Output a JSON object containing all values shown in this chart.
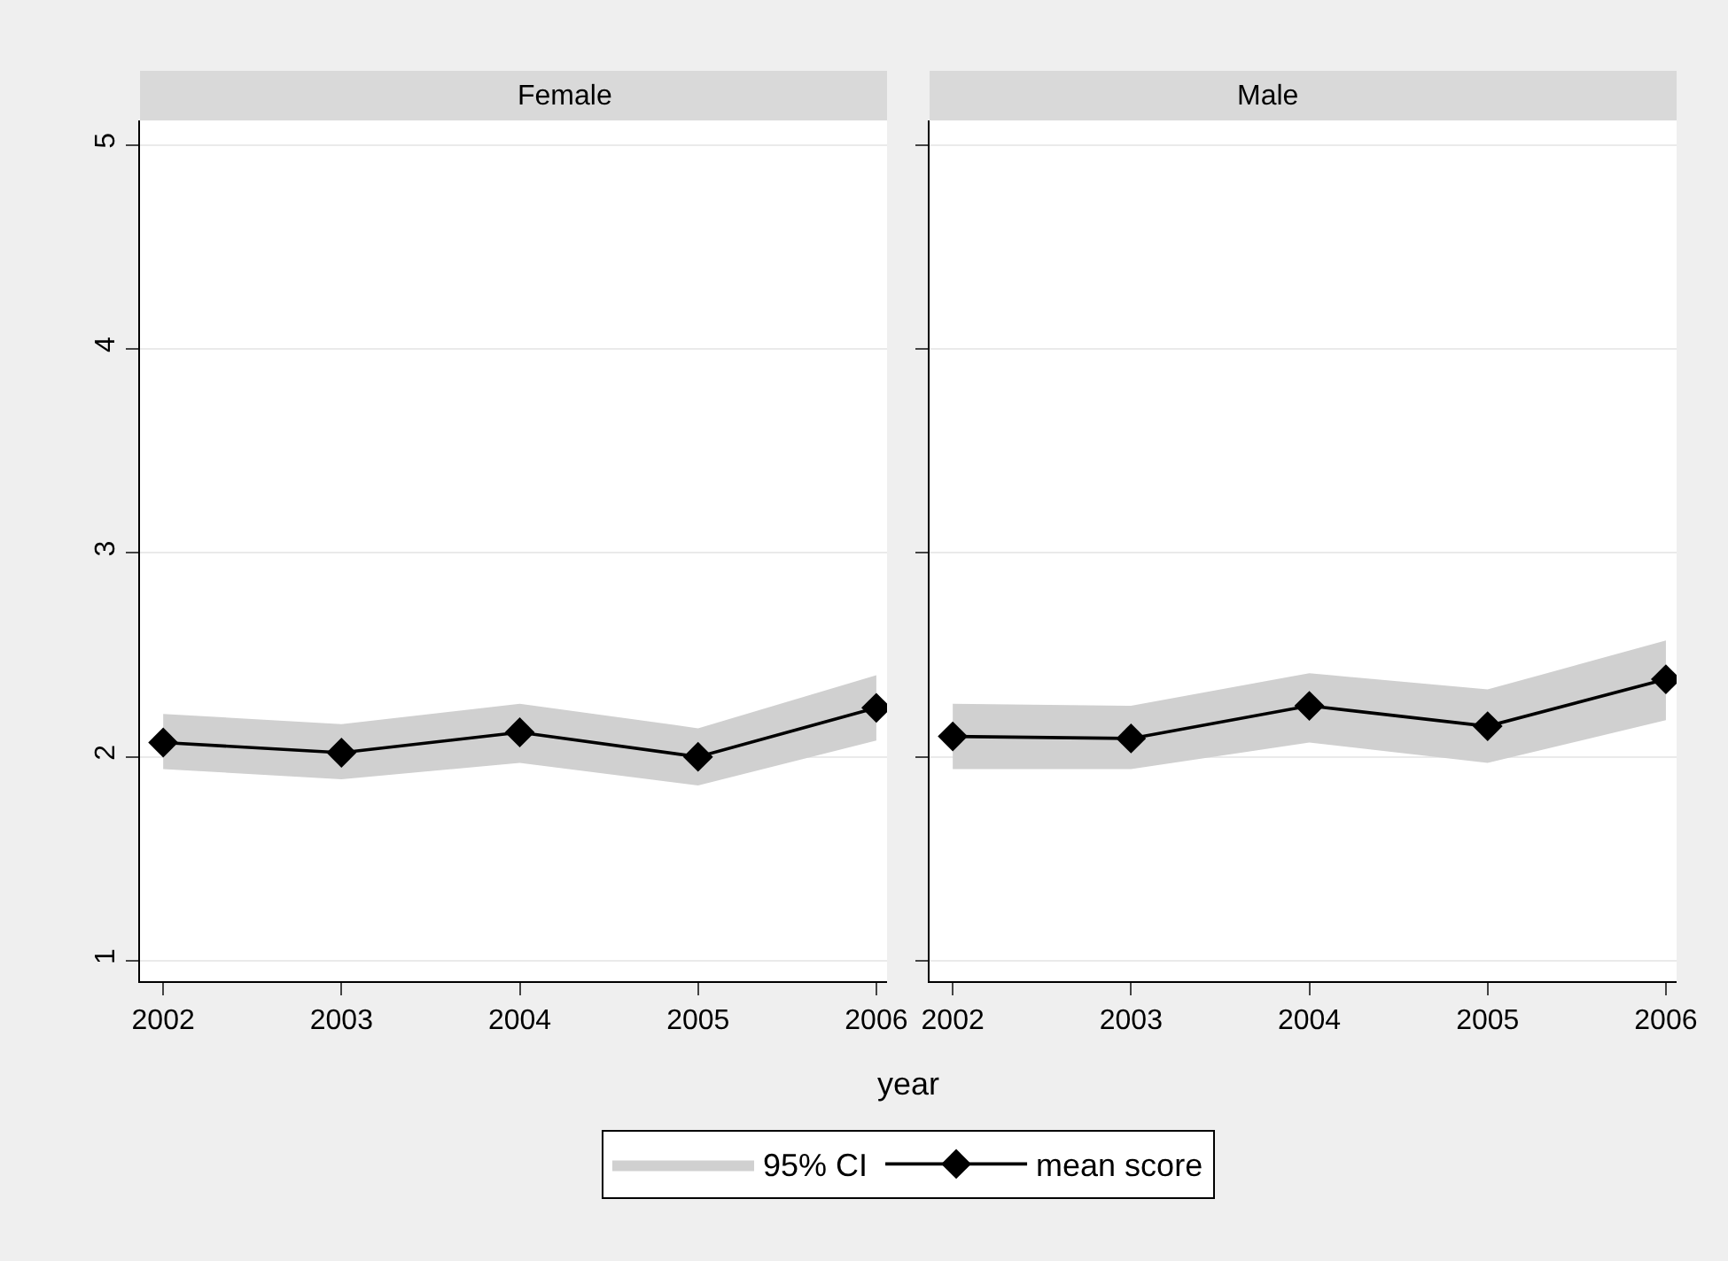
{
  "chart_data": [
    {
      "type": "line",
      "title": "Female",
      "xlabel": "year",
      "annotations": [
        "95% CI"
      ],
      "x": [
        2002,
        2003,
        2004,
        2005,
        2006
      ],
      "xlim": [
        2001.87,
        2006.06
      ],
      "xticks": [
        2002,
        2003,
        2004,
        2005,
        2006
      ],
      "ylim": [
        0.9,
        5.12
      ],
      "yticks": [
        1,
        2,
        3,
        4,
        5
      ],
      "grid": "y",
      "legend": "bottom",
      "line_style": "solid",
      "marker": "diamond",
      "series": [
        {
          "name": "mean score",
          "color": "#000000",
          "values": [
            2.07,
            2.02,
            2.12,
            2.0,
            2.24
          ],
          "lower": [
            1.94,
            1.89,
            1.97,
            1.86,
            2.08
          ],
          "upper": [
            2.21,
            2.16,
            2.26,
            2.14,
            2.4
          ]
        }
      ]
    },
    {
      "type": "line",
      "title": "Male",
      "x": [
        2002,
        2003,
        2004,
        2005,
        2006
      ],
      "xlim": [
        2001.87,
        2006.06
      ],
      "xticks": [
        2002,
        2003,
        2004,
        2005,
        2006
      ],
      "ylim": [
        0.9,
        5.12
      ],
      "yticks": [
        1,
        2,
        3,
        4,
        5
      ],
      "grid": "y",
      "tick_labels": "x",
      "line_style": "solid",
      "marker": "diamond",
      "series": [
        {
          "color": "#000000",
          "values": [
            2.1,
            2.09,
            2.25,
            2.15,
            2.38
          ],
          "lower": [
            1.94,
            1.94,
            2.07,
            1.97,
            2.18
          ],
          "upper": [
            2.26,
            2.25,
            2.41,
            2.33,
            2.57
          ]
        }
      ]
    }
  ]
}
